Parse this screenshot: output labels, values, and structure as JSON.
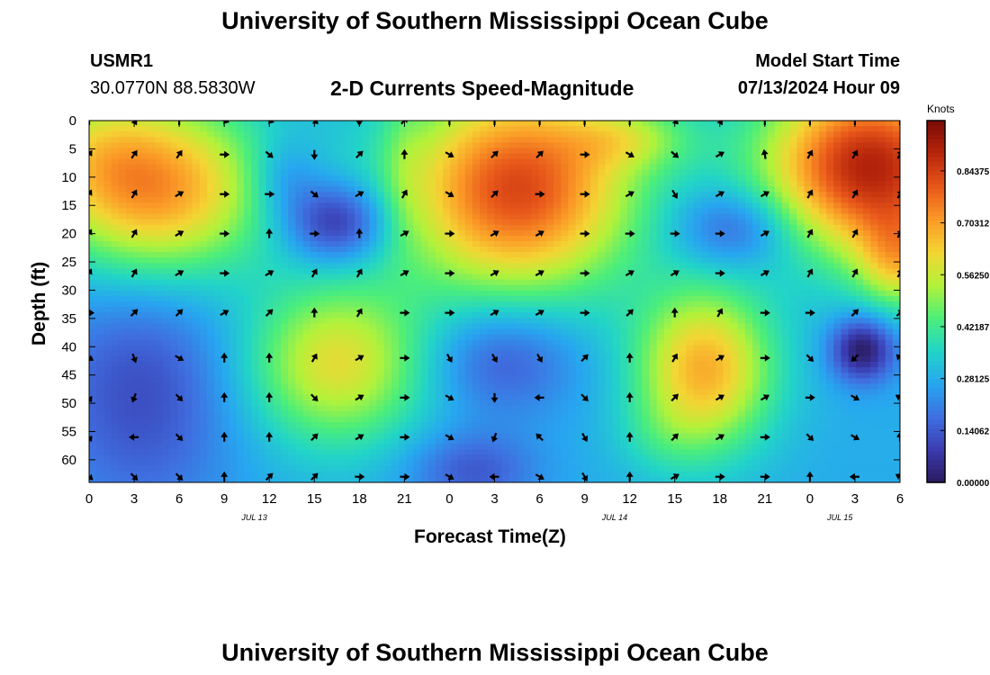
{
  "page": {
    "title": "University of Southern Mississippi Ocean Cube",
    "footer_title": "University of Southern Mississippi Ocean Cube",
    "station_id": "USMR1",
    "station_coords": "30.0770N  88.5830W",
    "model_start_label": "Model Start Time",
    "model_start_value": "07/13/2024 Hour 09"
  },
  "chart_data": {
    "type": "heatmap",
    "title": "2-D Currents Speed-Magnitude",
    "xlabel": "Forecast Time(Z)",
    "ylabel": "Depth (ft)",
    "x_ticks": [
      "0",
      "3",
      "6",
      "9",
      "12",
      "15",
      "18",
      "21",
      "0",
      "3",
      "6",
      "9",
      "12",
      "15",
      "18",
      "21",
      "0",
      "3",
      "6"
    ],
    "y_ticks": [
      "0",
      "5",
      "10",
      "15",
      "20",
      "25",
      "30",
      "35",
      "40",
      "45",
      "50",
      "55",
      "60"
    ],
    "x_range_hours": [
      0,
      54
    ],
    "y_range_ft": [
      0,
      64
    ],
    "y_inverted": true,
    "date_labels": [
      {
        "label": "JUL 13",
        "hour": 11
      },
      {
        "label": "JUL 14",
        "hour": 35
      },
      {
        "label": "JUL 15",
        "hour": 50
      }
    ],
    "colorbar": {
      "unit": "Knots",
      "ticks": [
        "0.00000",
        "0.14062",
        "0.28125",
        "0.42187",
        "0.56250",
        "0.70312",
        "0.84375"
      ],
      "tick_values": [
        0.0,
        0.140625,
        0.28125,
        0.421875,
        0.5625,
        0.703125,
        0.84375
      ],
      "range": [
        0,
        0.98
      ],
      "colors": [
        "#2a1a5e",
        "#3b3bb0",
        "#3f6fe0",
        "#27a6f0",
        "#22d4c8",
        "#4cee7a",
        "#b2f23a",
        "#f4d534",
        "#fb9a27",
        "#e8571a",
        "#b8260c",
        "#7a0a06"
      ]
    },
    "speed_field": {
      "units": "knots",
      "background": 0.28,
      "blobs": [
        {
          "t": 4.5,
          "d": 12,
          "sx": 5.0,
          "sy": 11,
          "amp": 0.45
        },
        {
          "t": 0.0,
          "d": 5,
          "sx": 3.0,
          "sy": 8,
          "amp": 0.12
        },
        {
          "t": 16.5,
          "d": 18,
          "sx": 2.4,
          "sy": 5,
          "amp": -0.25
        },
        {
          "t": 13.0,
          "d": 10,
          "sx": 1.6,
          "sy": 5,
          "amp": -0.1
        },
        {
          "t": 21.0,
          "d": 8,
          "sx": 1.0,
          "sy": 10,
          "amp": 0.05
        },
        {
          "t": 3.5,
          "d": 48,
          "sx": 4.5,
          "sy": 16,
          "amp": -0.16
        },
        {
          "t": 16.5,
          "d": 43,
          "sx": 4.2,
          "sy": 10,
          "amp": 0.32
        },
        {
          "t": 28.5,
          "d": 12,
          "sx": 5.5,
          "sy": 13,
          "amp": 0.55
        },
        {
          "t": 36.0,
          "d": 3,
          "sx": 3.0,
          "sy": 4,
          "amp": 0.15
        },
        {
          "t": 27.5,
          "d": 42,
          "sx": 3.5,
          "sy": 7,
          "amp": -0.15
        },
        {
          "t": 25.5,
          "d": 62,
          "sx": 3.0,
          "sy": 5,
          "amp": -0.14
        },
        {
          "t": 41.0,
          "d": 44,
          "sx": 3.2,
          "sy": 10,
          "amp": 0.4
        },
        {
          "t": 43.0,
          "d": 19,
          "sx": 2.8,
          "sy": 5,
          "amp": -0.17
        },
        {
          "t": 52.0,
          "d": 8,
          "sx": 5.0,
          "sy": 11,
          "amp": 0.62
        },
        {
          "t": 54.0,
          "d": 25,
          "sx": 2.0,
          "sy": 6,
          "amp": 0.25
        },
        {
          "t": 51.5,
          "d": 40.5,
          "sx": 1.5,
          "sy": 4,
          "amp": -0.28
        },
        {
          "t": 38.0,
          "d": 56,
          "sx": 2.2,
          "sy": 5,
          "amp": 0.05
        }
      ]
    },
    "vectors": {
      "hours": [
        0,
        3,
        6,
        9,
        12,
        15,
        18,
        21,
        24,
        27,
        30,
        33,
        36,
        39,
        42,
        45,
        48,
        51,
        54
      ],
      "depths_ft": [
        0,
        6,
        13,
        20,
        27,
        34,
        42,
        49,
        56,
        63
      ],
      "directions_deg": [
        [
          0,
          150,
          0,
          110,
          110,
          130,
          180,
          45,
          0,
          0,
          0,
          0,
          0,
          135,
          150,
          0,
          0,
          0,
          0
        ],
        [
          35,
          35,
          35,
          90,
          130,
          180,
          45,
          0,
          120,
          45,
          45,
          90,
          120,
          130,
          60,
          350,
          30,
          30,
          30
        ],
        [
          30,
          30,
          60,
          90,
          90,
          130,
          60,
          30,
          120,
          45,
          90,
          90,
          60,
          150,
          60,
          60,
          30,
          30,
          30
        ],
        [
          30,
          30,
          60,
          90,
          0,
          90,
          0,
          60,
          90,
          60,
          60,
          90,
          90,
          90,
          90,
          60,
          30,
          30,
          30
        ],
        [
          30,
          30,
          60,
          90,
          60,
          30,
          30,
          60,
          90,
          60,
          60,
          90,
          60,
          60,
          90,
          60,
          30,
          30,
          30
        ],
        [
          90,
          45,
          45,
          60,
          45,
          0,
          30,
          90,
          90,
          60,
          60,
          90,
          45,
          0,
          30,
          90,
          90,
          45,
          45
        ],
        [
          120,
          160,
          120,
          0,
          0,
          30,
          60,
          90,
          150,
          150,
          150,
          45,
          0,
          30,
          60,
          90,
          135,
          225,
          315
        ],
        [
          150,
          200,
          135,
          0,
          0,
          135,
          60,
          90,
          120,
          180,
          270,
          135,
          0,
          45,
          60,
          60,
          90,
          120,
          300
        ],
        [
          150,
          270,
          135,
          0,
          0,
          45,
          60,
          90,
          120,
          200,
          315,
          150,
          0,
          45,
          60,
          90,
          135,
          120,
          0
        ],
        [
          130,
          135,
          135,
          0,
          45,
          45,
          90,
          90,
          120,
          270,
          120,
          150,
          0,
          60,
          90,
          90,
          0,
          270,
          300
        ]
      ]
    }
  }
}
